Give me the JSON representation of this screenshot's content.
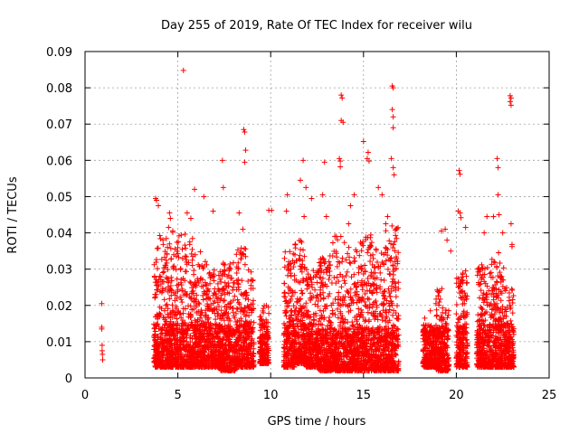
{
  "chart_data": {
    "type": "scatter",
    "title": "Day 255 of 2019, Rate Of TEC Index for receiver wilu",
    "xlabel": "GPS time / hours",
    "ylabel": "ROTI / TECUs",
    "xlim": [
      0,
      25
    ],
    "ylim": [
      0,
      0.09
    ],
    "xticks": [
      0,
      5,
      10,
      15,
      20,
      25
    ],
    "xtick_labels": [
      "0",
      "5",
      "10",
      "15",
      "20",
      "25"
    ],
    "yticks": [
      0,
      0.01,
      0.02,
      0.03,
      0.04,
      0.05,
      0.06,
      0.07,
      0.08,
      0.09
    ],
    "ytick_labels": [
      "0",
      "0.01",
      "0.02",
      "0.03",
      "0.04",
      "0.05",
      "0.06",
      "0.07",
      "0.08",
      "0.09"
    ],
    "grid": true,
    "marker": "plus",
    "color": "#ff0000",
    "series": [
      {
        "points": [
          [
            0.9,
            0.0205
          ],
          [
            0.9,
            0.014
          ],
          [
            0.9,
            0.0135
          ],
          [
            0.92,
            0.009
          ],
          [
            0.92,
            0.0075
          ],
          [
            0.94,
            0.0065
          ],
          [
            0.95,
            0.005
          ],
          [
            5.3,
            0.0848
          ],
          [
            8.55,
            0.0685
          ],
          [
            8.6,
            0.0678
          ],
          [
            8.65,
            0.0628
          ],
          [
            8.6,
            0.0595
          ],
          [
            7.4,
            0.06
          ],
          [
            7.45,
            0.0525
          ],
          [
            13.8,
            0.078
          ],
          [
            13.85,
            0.0772
          ],
          [
            13.8,
            0.071
          ],
          [
            13.9,
            0.0705
          ],
          [
            13.7,
            0.0605
          ],
          [
            13.75,
            0.0598
          ],
          [
            13.75,
            0.0582
          ],
          [
            15.0,
            0.0652
          ],
          [
            15.25,
            0.0622
          ],
          [
            15.2,
            0.0605
          ],
          [
            15.3,
            0.0598
          ],
          [
            16.55,
            0.0805
          ],
          [
            16.6,
            0.08
          ],
          [
            16.55,
            0.074
          ],
          [
            16.6,
            0.072
          ],
          [
            16.6,
            0.069
          ],
          [
            16.5,
            0.0605
          ],
          [
            16.6,
            0.058
          ],
          [
            16.65,
            0.056
          ],
          [
            22.9,
            0.0778
          ],
          [
            22.95,
            0.0772
          ],
          [
            22.9,
            0.0762
          ],
          [
            22.95,
            0.0752
          ],
          [
            22.2,
            0.0605
          ],
          [
            22.25,
            0.058
          ],
          [
            22.25,
            0.0505
          ],
          [
            20.15,
            0.0572
          ],
          [
            20.2,
            0.0562
          ],
          [
            20.1,
            0.046
          ],
          [
            20.2,
            0.0455
          ],
          [
            20.25,
            0.0442
          ],
          [
            3.8,
            0.0495
          ],
          [
            3.85,
            0.049
          ],
          [
            3.95,
            0.0475
          ],
          [
            4.55,
            0.0455
          ],
          [
            4.6,
            0.044
          ],
          [
            4.5,
            0.0415
          ],
          [
            5.5,
            0.0455
          ],
          [
            5.7,
            0.044
          ],
          [
            5.9,
            0.052
          ],
          [
            6.4,
            0.05
          ],
          [
            6.9,
            0.046
          ],
          [
            8.3,
            0.0455
          ],
          [
            8.5,
            0.041
          ],
          [
            9.9,
            0.0462
          ],
          [
            10.05,
            0.0462
          ],
          [
            10.9,
            0.0505
          ],
          [
            10.85,
            0.046
          ],
          [
            11.6,
            0.0545
          ],
          [
            11.75,
            0.06
          ],
          [
            11.9,
            0.0525
          ],
          [
            12.2,
            0.0495
          ],
          [
            11.8,
            0.0445
          ],
          [
            12.9,
            0.0595
          ],
          [
            12.8,
            0.0505
          ],
          [
            13.0,
            0.0445
          ],
          [
            14.3,
            0.0475
          ],
          [
            14.5,
            0.0505
          ],
          [
            14.2,
            0.0425
          ],
          [
            15.8,
            0.0525
          ],
          [
            16.0,
            0.0505
          ],
          [
            16.3,
            0.0445
          ],
          [
            16.2,
            0.0425
          ],
          [
            19.2,
            0.0405
          ],
          [
            19.4,
            0.041
          ],
          [
            19.5,
            0.038
          ],
          [
            19.7,
            0.035
          ],
          [
            20.5,
            0.0415
          ],
          [
            21.5,
            0.04
          ],
          [
            21.65,
            0.0445
          ],
          [
            22.0,
            0.0445
          ],
          [
            22.3,
            0.045
          ],
          [
            22.5,
            0.04
          ],
          [
            22.95,
            0.0425
          ],
          [
            23.0,
            0.0368
          ],
          [
            23.0,
            0.0362
          ],
          [
            18.6,
            0.0185
          ],
          [
            18.3,
            0.0165
          ],
          [
            18.9,
            0.0205
          ]
        ]
      }
    ],
    "clusters": [
      [
        3.7,
        4.0,
        0.003,
        0.036
      ],
      [
        4.0,
        4.6,
        0.003,
        0.04
      ],
      [
        4.6,
        5.2,
        0.003,
        0.043
      ],
      [
        5.2,
        5.9,
        0.003,
        0.04
      ],
      [
        5.9,
        6.6,
        0.003,
        0.035
      ],
      [
        6.6,
        7.3,
        0.003,
        0.03
      ],
      [
        7.3,
        8.1,
        0.002,
        0.032
      ],
      [
        8.1,
        8.7,
        0.003,
        0.036
      ],
      [
        8.7,
        9.1,
        0.003,
        0.03
      ],
      [
        9.4,
        9.9,
        0.004,
        0.02
      ],
      [
        10.7,
        11.3,
        0.003,
        0.035
      ],
      [
        11.3,
        11.9,
        0.004,
        0.038
      ],
      [
        11.9,
        12.6,
        0.003,
        0.03
      ],
      [
        12.6,
        13.3,
        0.002,
        0.034
      ],
      [
        13.3,
        14.0,
        0.002,
        0.04
      ],
      [
        14.0,
        14.7,
        0.002,
        0.036
      ],
      [
        14.7,
        15.5,
        0.002,
        0.04
      ],
      [
        15.5,
        16.2,
        0.002,
        0.036
      ],
      [
        16.2,
        16.9,
        0.002,
        0.042
      ],
      [
        18.2,
        18.9,
        0.003,
        0.015
      ],
      [
        18.9,
        19.6,
        0.002,
        0.025
      ],
      [
        20.0,
        20.6,
        0.003,
        0.03
      ],
      [
        21.1,
        21.9,
        0.003,
        0.032
      ],
      [
        21.9,
        22.6,
        0.003,
        0.035
      ],
      [
        22.6,
        23.1,
        0.003,
        0.025
      ]
    ]
  }
}
